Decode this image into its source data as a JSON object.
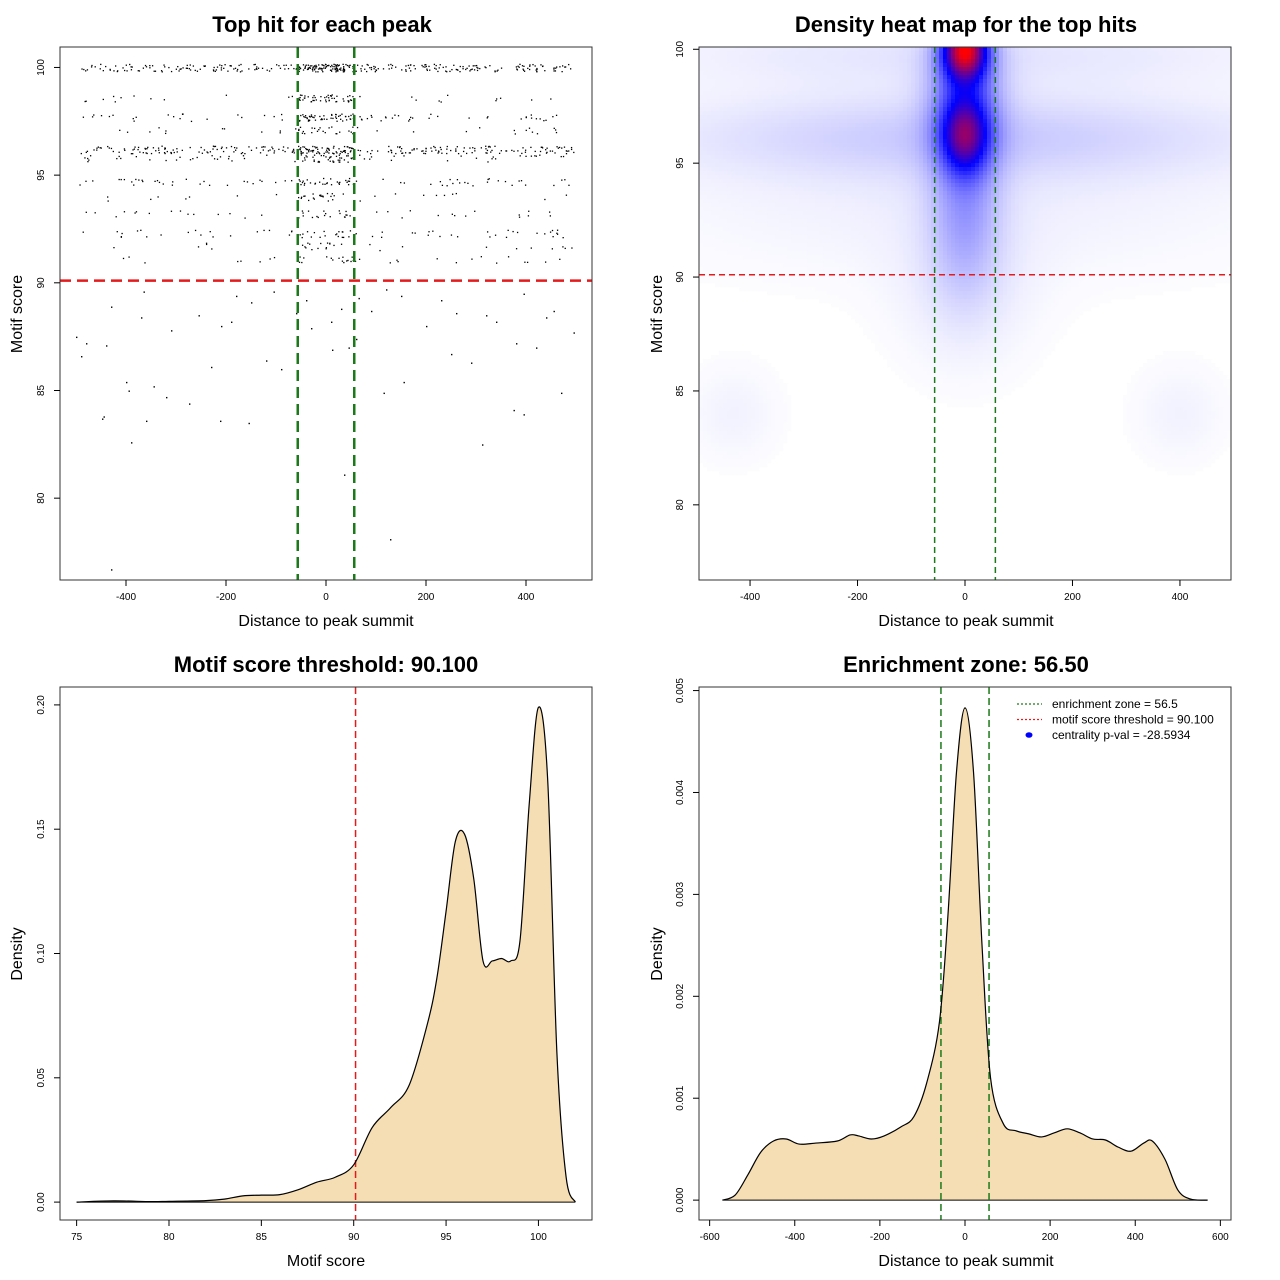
{
  "colors": {
    "threshold_line": "#e41a1c",
    "zone_line": "#1a7a1a",
    "density_fill": "#f5deb3",
    "heat_low": "#ffffff",
    "heat_mid": "#0000ff",
    "heat_high": "#ff0000",
    "pval_marker": "#0000ff"
  },
  "chart_data": [
    {
      "type": "scatter",
      "title": "Top hit for each peak",
      "xlabel": "Distance to peak summit",
      "ylabel": "Motif score",
      "xlim": [
        -532,
        532
      ],
      "ylim": [
        76.2,
        100.95
      ],
      "xticks": [
        -400,
        -200,
        0,
        200,
        400
      ],
      "xtick_labels": [
        "-400",
        "-200",
        "0",
        "200",
        "400"
      ],
      "yticks": [
        80,
        85,
        90,
        95,
        100
      ],
      "ytick_labels": [
        "80",
        "85",
        "90",
        "95",
        "100"
      ],
      "hlines": [
        90.1
      ],
      "vlines": [
        -56.5,
        56.5
      ],
      "bands": [
        {
          "score": 100.0,
          "n": 340,
          "core": 80
        },
        {
          "score": 98.6,
          "n": 70,
          "core": 40
        },
        {
          "score": 97.7,
          "n": 110,
          "core": 45
        },
        {
          "score": 97.1,
          "n": 50,
          "core": 20
        },
        {
          "score": 96.2,
          "n": 280,
          "core": 50
        },
        {
          "score": 95.8,
          "n": 90,
          "core": 30
        },
        {
          "score": 94.7,
          "n": 90,
          "core": 25
        },
        {
          "score": 94.0,
          "n": 40,
          "core": 20
        },
        {
          "score": 93.2,
          "n": 50,
          "core": 15
        },
        {
          "score": 92.3,
          "n": 70,
          "core": 15
        },
        {
          "score": 91.7,
          "n": 30,
          "core": 10
        },
        {
          "score": 91.1,
          "n": 40,
          "core": 15
        }
      ],
      "points": [
        {
          "x": -430,
          "y": 76.7
        },
        {
          "x": 128,
          "y": 78.1
        },
        {
          "x": 36,
          "y": 81.1
        },
        {
          "x": -390,
          "y": 82.6
        },
        {
          "x": 312,
          "y": 82.5
        },
        {
          "x": -448,
          "y": 83.7
        },
        {
          "x": -445,
          "y": 83.8
        },
        {
          "x": -360,
          "y": 83.6
        },
        {
          "x": -212,
          "y": 83.6
        },
        {
          "x": -155,
          "y": 83.5
        },
        {
          "x": 375,
          "y": 84.1
        },
        {
          "x": 395,
          "y": 83.9
        },
        {
          "x": 470,
          "y": 84.9
        },
        {
          "x": -395,
          "y": 85.0
        },
        {
          "x": -400,
          "y": 85.4
        },
        {
          "x": -345,
          "y": 85.2
        },
        {
          "x": -320,
          "y": 84.7
        },
        {
          "x": -274,
          "y": 84.4
        },
        {
          "x": 115,
          "y": 84.9
        },
        {
          "x": 155,
          "y": 85.4
        },
        {
          "x": -490,
          "y": 86.6
        },
        {
          "x": -230,
          "y": 86.1
        },
        {
          "x": -120,
          "y": 86.4
        },
        {
          "x": -90,
          "y": 86.0
        },
        {
          "x": 290,
          "y": 86.3
        },
        {
          "x": 250,
          "y": 86.7
        },
        {
          "x": 420,
          "y": 87.0
        },
        {
          "x": 495,
          "y": 87.7
        },
        {
          "x": -480,
          "y": 87.2
        },
        {
          "x": -440,
          "y": 87.1
        },
        {
          "x": 12,
          "y": 86.9
        },
        {
          "x": 45,
          "y": 87.0
        },
        {
          "x": 60,
          "y": 87.4
        },
        {
          "x": 380,
          "y": 87.2
        },
        {
          "x": -310,
          "y": 87.8
        },
        {
          "x": -210,
          "y": 88.0
        },
        {
          "x": -190,
          "y": 88.2
        },
        {
          "x": -30,
          "y": 87.9
        },
        {
          "x": 10,
          "y": 88.2
        },
        {
          "x": 200,
          "y": 88.0
        },
        {
          "x": 340,
          "y": 88.2
        },
        {
          "x": 440,
          "y": 88.4
        },
        {
          "x": -370,
          "y": 88.4
        },
        {
          "x": -255,
          "y": 88.5
        },
        {
          "x": -60,
          "y": 88.6
        },
        {
          "x": 30,
          "y": 88.8
        },
        {
          "x": 90,
          "y": 88.7
        },
        {
          "x": 260,
          "y": 88.6
        },
        {
          "x": 320,
          "y": 88.5
        },
        {
          "x": 455,
          "y": 88.7
        },
        {
          "x": -430,
          "y": 88.9
        },
        {
          "x": -150,
          "y": 89.1
        },
        {
          "x": -40,
          "y": 89.2
        },
        {
          "x": 65,
          "y": 89.3
        },
        {
          "x": 150,
          "y": 89.4
        },
        {
          "x": 230,
          "y": 89.2
        },
        {
          "x": -180,
          "y": 89.4
        },
        {
          "x": -365,
          "y": 89.6
        },
        {
          "x": 395,
          "y": 89.5
        },
        {
          "x": -105,
          "y": 89.6
        },
        {
          "x": 120,
          "y": 89.7
        },
        {
          "x": -500,
          "y": 87.5
        }
      ]
    },
    {
      "type": "heatmap",
      "title": "Density heat map for the top hits",
      "xlabel": "Distance to peak summit",
      "ylabel": "Motif score",
      "xlim": [
        -495,
        495
      ],
      "ylim": [
        76.7,
        100.1
      ],
      "xticks": [
        -400,
        -200,
        0,
        200,
        400
      ],
      "xtick_labels": [
        "-400",
        "-200",
        "0",
        "200",
        "400"
      ],
      "yticks": [
        80,
        85,
        90,
        95,
        100
      ],
      "ytick_labels": [
        "80",
        "85",
        "90",
        "95",
        "100"
      ],
      "hlines": [
        90.1
      ],
      "vlines": [
        -56.5,
        56.5
      ],
      "blobs": [
        {
          "x": 0,
          "y": 100.0,
          "sx": 28,
          "sy": 0.9,
          "w": 1.55
        },
        {
          "x": 0,
          "y": 96.2,
          "sx": 30,
          "sy": 1.1,
          "w": 0.85
        },
        {
          "x": 0,
          "y": 98.0,
          "sx": 45,
          "sy": 2.2,
          "w": 0.55
        },
        {
          "x": 0,
          "y": 93.0,
          "sx": 45,
          "sy": 2.5,
          "w": 0.3
        },
        {
          "x": 0,
          "y": 96.2,
          "sx": 380,
          "sy": 1.3,
          "w": 0.18
        },
        {
          "x": 0,
          "y": 99.8,
          "sx": 420,
          "sy": 1.1,
          "w": 0.1
        },
        {
          "x": 0,
          "y": 93.5,
          "sx": 420,
          "sy": 2.5,
          "w": 0.06
        },
        {
          "x": 0,
          "y": 89.5,
          "sx": 90,
          "sy": 2.5,
          "w": 0.08
        },
        {
          "x": -430,
          "y": 84.0,
          "sx": 60,
          "sy": 1.5,
          "w": 0.05
        },
        {
          "x": 400,
          "y": 84.0,
          "sx": 60,
          "sy": 1.5,
          "w": 0.05
        }
      ]
    },
    {
      "type": "area",
      "title": "Motif score threshold: 90.100",
      "xlabel": "Motif score",
      "ylabel": "Density",
      "xlim": [
        74.1,
        102.9
      ],
      "ylim": [
        -0.0072,
        0.2072
      ],
      "xticks": [
        75,
        80,
        85,
        90,
        95,
        100
      ],
      "xtick_labels": [
        "75",
        "80",
        "85",
        "90",
        "95",
        "100"
      ],
      "yticks": [
        0,
        0.05,
        0.1,
        0.15,
        0.2
      ],
      "ytick_labels": [
        "0.00",
        "0.05",
        "0.10",
        "0.15",
        "0.20"
      ],
      "vlines": [
        90.1
      ],
      "x": [
        75,
        77,
        79,
        80,
        82,
        83,
        84,
        85,
        86,
        87,
        88,
        89,
        90,
        91,
        92,
        93,
        94,
        94.5,
        95,
        95.5,
        96,
        96.5,
        97,
        97.5,
        98,
        98.5,
        99,
        99.5,
        100,
        100.5,
        101,
        101.5,
        102
      ],
      "y": [
        0,
        0.0005,
        0.0002,
        0.0003,
        0.0006,
        0.0012,
        0.0025,
        0.0028,
        0.003,
        0.005,
        0.008,
        0.01,
        0.015,
        0.03,
        0.038,
        0.047,
        0.072,
        0.09,
        0.117,
        0.145,
        0.148,
        0.13,
        0.097,
        0.097,
        0.098,
        0.097,
        0.105,
        0.16,
        0.199,
        0.17,
        0.06,
        0.01,
        0
      ]
    },
    {
      "type": "area",
      "title": "Enrichment zone: 56.50",
      "xlabel": "Distance to peak summit",
      "ylabel": "Density",
      "xlim": [
        -625,
        625
      ],
      "ylim": [
        -0.000195,
        0.005035
      ],
      "xticks": [
        -600,
        -400,
        -200,
        0,
        200,
        400,
        600
      ],
      "xtick_labels": [
        "-600",
        "-400",
        "-200",
        "0",
        "200",
        "400",
        "600"
      ],
      "yticks": [
        0,
        0.001,
        0.002,
        0.003,
        0.004,
        0.005
      ],
      "ytick_labels": [
        "0.000",
        "0.001",
        "0.002",
        "0.003",
        "0.004",
        "0.005"
      ],
      "vlines": [
        -56.5,
        56.5
      ],
      "x": [
        -570,
        -540,
        -510,
        -480,
        -450,
        -420,
        -390,
        -350,
        -300,
        -270,
        -250,
        -220,
        -190,
        -150,
        -120,
        -90,
        -60,
        -40,
        -20,
        0,
        20,
        40,
        60,
        90,
        120,
        150,
        180,
        210,
        240,
        270,
        300,
        330,
        360,
        390,
        420,
        440,
        470,
        500,
        530,
        570
      ],
      "y": [
        0,
        5e-05,
        0.00025,
        0.00047,
        0.00058,
        0.0006,
        0.00055,
        0.00056,
        0.00058,
        0.00064,
        0.00063,
        0.0006,
        0.00063,
        0.00072,
        0.00082,
        0.00115,
        0.00175,
        0.0028,
        0.0042,
        0.00483,
        0.0042,
        0.0025,
        0.0012,
        0.00075,
        0.00068,
        0.00065,
        0.00062,
        0.00066,
        0.0007,
        0.00066,
        0.0006,
        0.00059,
        0.00052,
        0.00048,
        0.00056,
        0.00058,
        0.0004,
        0.0001,
        1e-05,
        0
      ],
      "legend": {
        "position": "top-right",
        "entries": [
          {
            "label": "enrichment zone = 56.5",
            "color": "#1a7a1a",
            "marker": "dotted-line"
          },
          {
            "label": "motif score threshold = 90.100",
            "color": "#e41a1c",
            "marker": "dotted-line"
          },
          {
            "label": "centrality p-val = -28.5934",
            "color": "#0000ff",
            "marker": "dot"
          }
        ]
      }
    }
  ]
}
